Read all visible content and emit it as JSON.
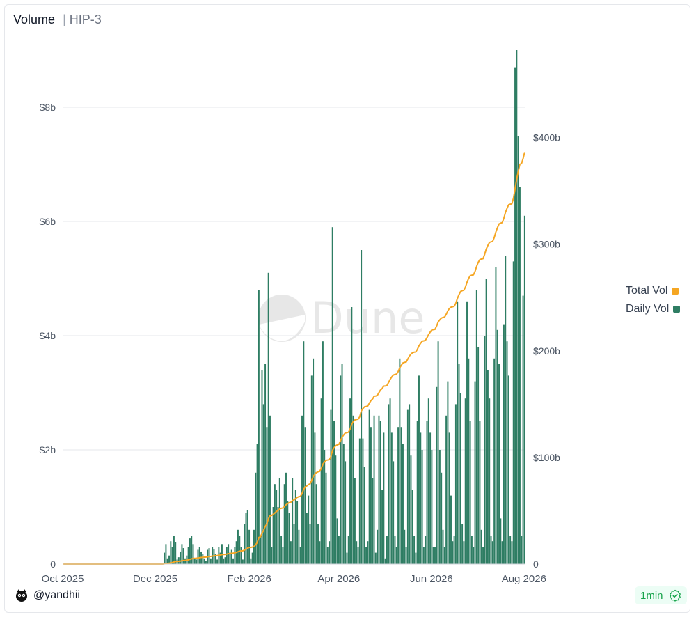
{
  "header": {
    "title": "Volume",
    "separator": "|",
    "subtitle": "HIP-3"
  },
  "watermark": {
    "text": "Dune"
  },
  "footer": {
    "username": "@yandhii",
    "refresh": "1min"
  },
  "colors": {
    "daily": "#2e7d63",
    "total": "#f5a623",
    "grid": "#e5e7eb",
    "axis_text": "#4b5563"
  },
  "icons": {
    "avatar": "cartoon-avatar-icon",
    "refresh": "check-circle-icon",
    "watermark": "dune-logo-icon"
  },
  "legend": [
    {
      "label": "Total Vol",
      "color": "#f5a623"
    },
    {
      "label": "Daily Vol",
      "color": "#2e7d63"
    }
  ],
  "chart_data": {
    "type": "bar",
    "start_date": "2025-10-01",
    "end_date": "2026-08-02",
    "x_ticks": [
      "Oct 2025",
      "Dec 2025",
      "Feb 2026",
      "Apr 2026",
      "Jun 2026",
      "Aug 2026"
    ],
    "y_left": {
      "ticks": [
        "0",
        "$2b",
        "$4b",
        "$6b",
        "$8b"
      ],
      "range_billions": [
        0,
        9
      ]
    },
    "y_right": {
      "ticks": [
        "0",
        "$100b",
        "$200b",
        "$300b",
        "$400b"
      ],
      "range_billions": [
        0,
        482
      ]
    },
    "grid": true,
    "legend_position": "right",
    "series": [
      {
        "name": "Daily Vol",
        "type": "bar",
        "axis": "left",
        "unit": "billion USD",
        "values": [
          0,
          0,
          0,
          0,
          0,
          0,
          0,
          0,
          0,
          0,
          0,
          0,
          0,
          0,
          0,
          0,
          0,
          0,
          0,
          0,
          0,
          0,
          0,
          0,
          0,
          0,
          0,
          0,
          0,
          0,
          0,
          0,
          0,
          0,
          0,
          0,
          0,
          0,
          0,
          0,
          0,
          0,
          0,
          0,
          0,
          0,
          0,
          0,
          0,
          0,
          0,
          0,
          0,
          0,
          0,
          0,
          0,
          0,
          0,
          0,
          0,
          0,
          0,
          0.2,
          0.35,
          0.1,
          0.15,
          0.4,
          0.3,
          0.5,
          0.38,
          0.08,
          0.12,
          0.22,
          0.35,
          0.28,
          0.1,
          0.15,
          0.3,
          0.45,
          0.5,
          0.35,
          0.1,
          0.08,
          0.25,
          0.3,
          0.22,
          0.18,
          0.1,
          0.05,
          0.25,
          0.28,
          0.1,
          0.3,
          0.26,
          0.18,
          0.08,
          0.3,
          0.2,
          0.35,
          0.1,
          0.12,
          0.3,
          0.35,
          0.2,
          0.25,
          0.1,
          0.3,
          0.4,
          0.6,
          0.5,
          0.3,
          0.08,
          0.7,
          0.9,
          0.95,
          0.6,
          0.1,
          0.2,
          0.6,
          1.6,
          2.1,
          4.8,
          0.5,
          3.4,
          2.8,
          3.5,
          2.4,
          5.1,
          2.6,
          0.3,
          1.0,
          1.4,
          1.3,
          1.0,
          1.5,
          0.5,
          0.3,
          1.4,
          1.6,
          1.1,
          0.9,
          0.4,
          1.5,
          0.7,
          1.3,
          1.1,
          0.6,
          0.3,
          2.6,
          3.9,
          2.4,
          0.9,
          1.2,
          0.7,
          3.3,
          3.6,
          2.3,
          1.4,
          0.7,
          0.4,
          2.9,
          3.9,
          2.0,
          1.6,
          0.3,
          0.4,
          2.7,
          5.9,
          2.5,
          1.9,
          0.8,
          0.5,
          3.3,
          3.5,
          2.1,
          1.8,
          0.2,
          0.5,
          2.9,
          4.5,
          2.6,
          1.5,
          0.4,
          0.3,
          2.2,
          5.5,
          2.2,
          1.7,
          0.3,
          0.4,
          2.7,
          2.4,
          1.5,
          2.6,
          0.2,
          0.6,
          2.6,
          2.5,
          1.3,
          2.3,
          0.1,
          0.5,
          2.8,
          2.9,
          2.3,
          1.8,
          0.5,
          0.3,
          2.4,
          3.6,
          2.4,
          2.1,
          0.6,
          0.3,
          2.7,
          2.8,
          1.9,
          1.3,
          0.5,
          0.2,
          2.5,
          3.3,
          2.3,
          2.0,
          0.3,
          0.5,
          2.5,
          2.9,
          2.3,
          2.0,
          0.3,
          0.3,
          3.1,
          3.9,
          2.0,
          1.6,
          0.6,
          0.3,
          2.6,
          3.2,
          2.3,
          1.2,
          0.4,
          0.5,
          2.8,
          4.6,
          3.5,
          3.0,
          0.7,
          0.4,
          2.9,
          4.6,
          3.6,
          2.5,
          0.5,
          0.3,
          3.2,
          4.8,
          3.8,
          2.5,
          0.6,
          0.3,
          4.0,
          5.0,
          3.4,
          2.9,
          0.5,
          0.4,
          3.6,
          5.2,
          4.1,
          3.5,
          0.8,
          0.4,
          4.2,
          5.4,
          3.9,
          3.3,
          0.5,
          0.4,
          5.3,
          8.7,
          9.0,
          7.5,
          6.6,
          0.5,
          4.7,
          6.1
        ]
      },
      {
        "name": "Total Vol",
        "type": "line",
        "axis": "right",
        "unit": "billion USD",
        "values": [
          0,
          0,
          0,
          0,
          0,
          0,
          0,
          0,
          0,
          0,
          0,
          0,
          0,
          0,
          0,
          0,
          0,
          0,
          0,
          0,
          0,
          0,
          0,
          0,
          0,
          0,
          0,
          0,
          0,
          0,
          0,
          0,
          0,
          0,
          0,
          0,
          0,
          0,
          0,
          0,
          0,
          0,
          0,
          0,
          0,
          0,
          0,
          0,
          0,
          0,
          0,
          0,
          0,
          0,
          0,
          0,
          0,
          0,
          0,
          0,
          0,
          0,
          0,
          0.2,
          0.55,
          0.65,
          0.8,
          1.2,
          1.5,
          2.0,
          2.38,
          2.46,
          2.58,
          2.8,
          3.15,
          3.43,
          3.53,
          3.68,
          3.98,
          4.43,
          4.93,
          5.28,
          5.38,
          5.46,
          5.71,
          6.01,
          6.23,
          6.41,
          6.51,
          6.56,
          6.81,
          7.09,
          7.19,
          7.49,
          7.75,
          7.93,
          8.01,
          8.31,
          8.51,
          8.86,
          8.96,
          9.08,
          9.38,
          9.73,
          9.93,
          10.18,
          10.28,
          10.58,
          10.98,
          11.58,
          12.08,
          12.38,
          12.46,
          13.16,
          14.06,
          15.01,
          15.61,
          15.71,
          15.91,
          16.51,
          18.11,
          20.21,
          25.01,
          25.51,
          28.91,
          31.71,
          35.21,
          37.61,
          42.71,
          45.31,
          45.61,
          46.61,
          48.01,
          49.31,
          50.31,
          51.81,
          52.31,
          52.61,
          54.01,
          55.61,
          56.71,
          57.61,
          58.01,
          59.51,
          60.21,
          61.51,
          62.61,
          63.21,
          63.51,
          66.11,
          70.01,
          72.41,
          73.31,
          74.51,
          75.21,
          78.51,
          82.11,
          84.41,
          85.81,
          86.51,
          86.91,
          89.81,
          93.71,
          95.71,
          97.31,
          97.61,
          98.01,
          100.71,
          106.61,
          109.11,
          111.01,
          111.81,
          112.31,
          115.61,
          119.11,
          121.21,
          123.01,
          123.21,
          123.71,
          126.61,
          131.11,
          133.71,
          135.21,
          135.61,
          135.91,
          138.11,
          143.61,
          145.81,
          147.51,
          147.81,
          148.21,
          150.91,
          153.31,
          154.81,
          157.41,
          157.61,
          158.21,
          160.81,
          163.31,
          164.61,
          166.91,
          167.01,
          167.51,
          170.31,
          173.21,
          175.51,
          177.31,
          177.81,
          178.11,
          180.51,
          184.11,
          186.51,
          188.61,
          189.21,
          189.51,
          192.21,
          195.01,
          196.91,
          198.21,
          198.71,
          198.91,
          201.41,
          204.71,
          207.01,
          209.01,
          209.31,
          209.81,
          212.31,
          215.21,
          217.51,
          219.51,
          219.81,
          220.11,
          223.21,
          227.11,
          229.11,
          230.71,
          231.31,
          231.61,
          234.21,
          237.41,
          239.71,
          240.91,
          241.31,
          241.81,
          244.61,
          249.21,
          252.71,
          255.71,
          256.41,
          256.81,
          259.71,
          264.31,
          267.91,
          270.41,
          270.91,
          271.21,
          274.41,
          279.21,
          283.01,
          285.51,
          286.11,
          286.41,
          290.41,
          295.41,
          298.81,
          301.71,
          302.21,
          302.61,
          306.21,
          311.41,
          315.51,
          319.01,
          319.81,
          320.21,
          324.41,
          329.81,
          333.71,
          337.01,
          337.51,
          337.91,
          343.21,
          351.91,
          360.91,
          368.41,
          375.01,
          375.51,
          380.21,
          386.31
        ]
      }
    ]
  }
}
